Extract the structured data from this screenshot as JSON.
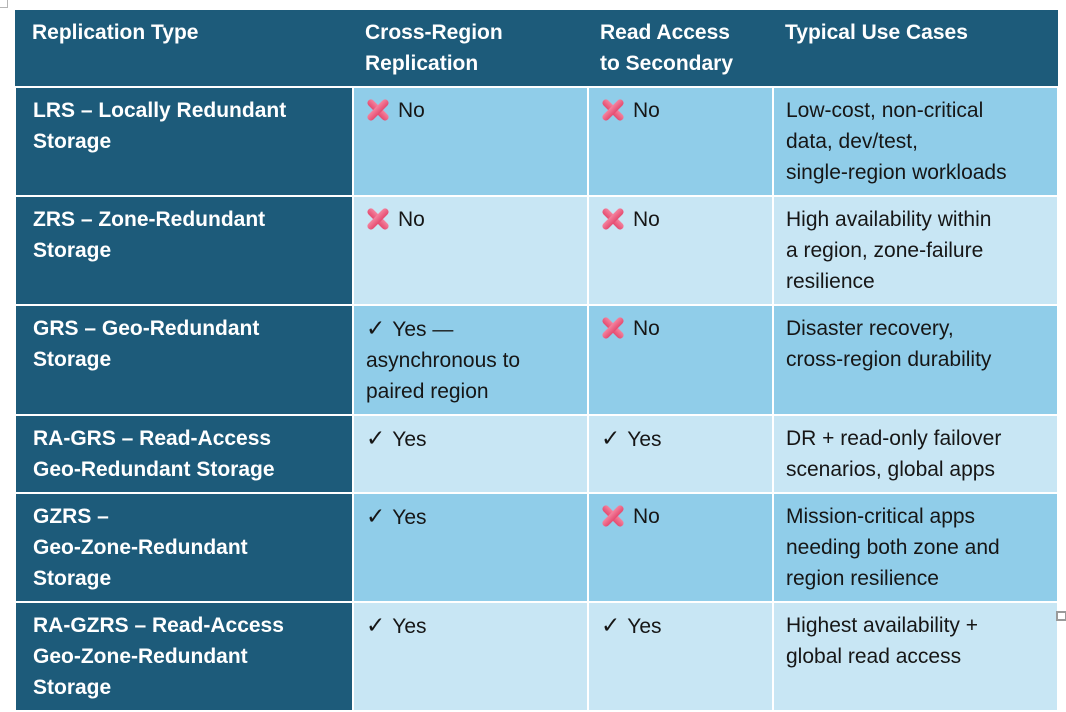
{
  "table": {
    "columns": [
      "Replication Type",
      "Cross-Region\nReplication",
      "Read Access\nto Secondary",
      "Typical Use Cases"
    ],
    "icons": {
      "check_glyph": "✓"
    },
    "rows": [
      {
        "replication_type": "LRS – Locally Redundant\nStorage",
        "cross_region": {
          "icon": "cross-icon",
          "text": "No"
        },
        "read_access": {
          "icon": "cross-icon",
          "text": "No"
        },
        "use_cases": "Low-cost, non-critical\ndata, dev/test,\nsingle-region workloads"
      },
      {
        "replication_type": "ZRS – Zone-Redundant\nStorage",
        "cross_region": {
          "icon": "cross-icon",
          "text": "No"
        },
        "read_access": {
          "icon": "cross-icon",
          "text": "No"
        },
        "use_cases": "High availability within\na region, zone-failure\nresilience"
      },
      {
        "replication_type": "GRS – Geo-Redundant\nStorage",
        "cross_region": {
          "icon": "check-icon",
          "text": "Yes —\nasynchronous to\npaired region"
        },
        "read_access": {
          "icon": "cross-icon",
          "text": "No"
        },
        "use_cases": "Disaster recovery,\ncross-region durability"
      },
      {
        "replication_type": "RA-GRS – Read-Access\nGeo-Redundant Storage",
        "cross_region": {
          "icon": "check-icon",
          "text": "Yes"
        },
        "read_access": {
          "icon": "check-icon",
          "text": "Yes"
        },
        "use_cases": "DR + read-only failover\nscenarios, global apps"
      },
      {
        "replication_type": "GZRS –\nGeo-Zone-Redundant\nStorage",
        "cross_region": {
          "icon": "check-icon",
          "text": "Yes"
        },
        "read_access": {
          "icon": "cross-icon",
          "text": "No"
        },
        "use_cases": "Mission-critical apps\nneeding both zone and\nregion resilience"
      },
      {
        "replication_type": "RA-GZRS – Read-Access\nGeo-Zone-Redundant\nStorage",
        "cross_region": {
          "icon": "check-icon",
          "text": "Yes"
        },
        "read_access": {
          "icon": "check-icon",
          "text": "Yes"
        },
        "use_cases": "Highest availability +\nglobal read access"
      }
    ],
    "colors": {
      "header_bg": "#1d5b7a",
      "row_band_dark": "#90cde9",
      "row_band_light": "#c8e6f4",
      "grid_line": "#ffffff",
      "header_text": "#ffffff",
      "body_text": "#161616",
      "cross_pink_light": "#f4849f",
      "cross_pink_dark": "#e54a70",
      "check_black": "#161616",
      "handle_gray": "#9a9a9a"
    }
  }
}
